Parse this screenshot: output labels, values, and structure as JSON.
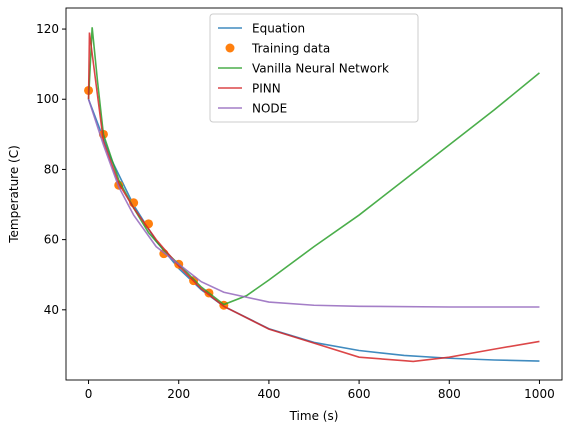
{
  "chart_data": {
    "type": "line",
    "x_label": "Time (s)",
    "y_label": "Temperature (C)",
    "xlim": [
      -50,
      1050
    ],
    "ylim": [
      20,
      126
    ],
    "xticks": [
      0,
      200,
      400,
      600,
      800,
      1000
    ],
    "yticks": [
      40,
      60,
      80,
      100,
      120
    ],
    "grid": false,
    "legend": "upper center",
    "series": [
      {
        "name": "Equation",
        "color": "#1f77b4",
        "mode": "line",
        "x": [
          0,
          50,
          100,
          150,
          200,
          250,
          300,
          400,
          500,
          600,
          700,
          800,
          900,
          1000
        ],
        "values": [
          100,
          83.0,
          69.8,
          59.6,
          51.8,
          45.7,
          41.0,
          34.6,
          30.7,
          28.4,
          27.0,
          26.2,
          25.7,
          25.4
        ]
      },
      {
        "name": "Training data",
        "color": "#ff7f0e",
        "mode": "markers",
        "x": [
          0,
          33,
          67,
          100,
          133,
          167,
          200,
          233,
          267,
          300
        ],
        "values": [
          102.5,
          90,
          75.5,
          70.5,
          64.5,
          56,
          53,
          48.3,
          44.8,
          41.3
        ]
      },
      {
        "name": "Vanilla Neural Network",
        "color": "#2ca02c",
        "mode": "line",
        "x": [
          0,
          8,
          20,
          33,
          67,
          100,
          133,
          167,
          200,
          250,
          300,
          350,
          400,
          500,
          600,
          700,
          800,
          900,
          1000
        ],
        "values": [
          100,
          120.5,
          105,
          90,
          77,
          69,
          62,
          57,
          53,
          46.5,
          41.5,
          44,
          48.5,
          58,
          67,
          77,
          87,
          97,
          107.5
        ]
      },
      {
        "name": "PINN",
        "color": "#d62728",
        "mode": "line",
        "x": [
          0,
          2,
          33,
          67,
          100,
          150,
          200,
          250,
          300,
          400,
          500,
          600,
          700,
          720,
          800,
          900,
          1000
        ],
        "values": [
          100,
          119,
          88,
          76,
          69,
          60,
          52.5,
          46,
          41,
          34.5,
          30.5,
          26.5,
          25.5,
          25.3,
          26.5,
          28.8,
          31
        ]
      },
      {
        "name": "NODE",
        "color": "#9467bd",
        "mode": "line",
        "x": [
          0,
          33,
          67,
          100,
          150,
          200,
          250,
          300,
          400,
          500,
          600,
          800,
          1000
        ],
        "values": [
          100,
          87,
          75,
          67,
          58,
          53,
          48,
          45,
          42.2,
          41.3,
          41,
          40.8,
          40.8
        ]
      }
    ]
  }
}
